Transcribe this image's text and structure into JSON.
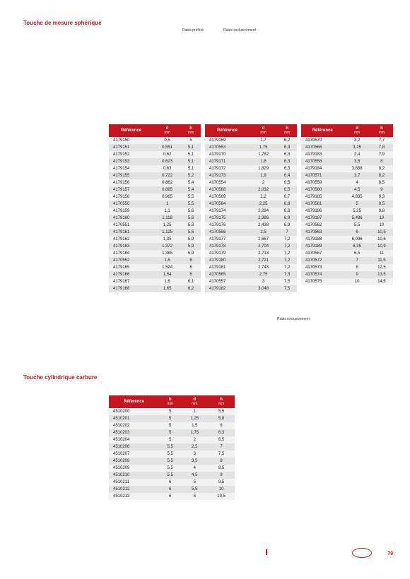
{
  "title1": "Touche de mesure sphérique",
  "title2": "Touche cylindrique carbure",
  "label_left": "Rubis préféré",
  "label_right": "Rubis exclusivement",
  "small_note": "Rubis\nexclusivement",
  "page_number": "79",
  "table1_headers": {
    "ref": "Référence",
    "d": "d",
    "d_unit": "mm",
    "h": "h",
    "h_unit": "mm"
  },
  "table2_headers": {
    "ref": "Référence",
    "b": "b",
    "b_unit": "mm",
    "d": "d",
    "d_unit": "mm",
    "h": "h",
    "h_unit": "mm"
  },
  "t1a": [
    [
      "4179150",
      "0,5",
      "5"
    ],
    [
      "4179151",
      "0,551",
      "5,1"
    ],
    [
      "4179152",
      "0,62",
      "5,1"
    ],
    [
      "4179153",
      "0,623",
      "5,1"
    ],
    [
      "4179154",
      "0,63",
      "5,1"
    ],
    [
      "4179155",
      "0,722",
      "5,2"
    ],
    [
      "4179156",
      "0,862",
      "5,4"
    ],
    [
      "4179157",
      "0,895",
      "5,4"
    ],
    [
      "4179158",
      "0,965",
      "5,5"
    ],
    [
      "4170550",
      "1",
      "5,5"
    ],
    [
      "4179159",
      "1,1",
      "5,6"
    ],
    [
      "4179160",
      "1,118",
      "5,6"
    ],
    [
      "4170551",
      "1,25",
      "5,8"
    ],
    [
      "4179161",
      "1,125",
      "5,6"
    ],
    [
      "4179162",
      "1,35",
      "5,9"
    ],
    [
      "4179163",
      "1,372",
      "5,9"
    ],
    [
      "4179164",
      "1,385",
      "5,9"
    ],
    [
      "4170552",
      "1,5",
      "6"
    ],
    [
      "4179165",
      "1,524",
      "6"
    ],
    [
      "4179166",
      "1,54",
      "6"
    ],
    [
      "4179167",
      "1,6",
      "6,1"
    ],
    [
      "4179168",
      "1,65",
      "6,2"
    ]
  ],
  "t1b": [
    [
      "4179169",
      "1,7",
      "6,2"
    ],
    [
      "4170553",
      "1,75",
      "6,3"
    ],
    [
      "4179170",
      "1,782",
      "6,3"
    ],
    [
      "4179171",
      "1,8",
      "6,3"
    ],
    [
      "4179172",
      "1,829",
      "6,3"
    ],
    [
      "4179173",
      "1,9",
      "6,4"
    ],
    [
      "4170554",
      "2",
      "6,5"
    ],
    [
      "4170568",
      "2,032",
      "6,5"
    ],
    [
      "4170569",
      "2,2",
      "6,7"
    ],
    [
      "4170564",
      "2,25",
      "6,8"
    ],
    [
      "4179174",
      "2,284",
      "6,8"
    ],
    [
      "4179175",
      "2,386",
      "6,9"
    ],
    [
      "4179176",
      "2,438",
      "6,9"
    ],
    [
      "4170556",
      "2,5",
      "7"
    ],
    [
      "4179177",
      "2,667",
      "7,2"
    ],
    [
      "4179178",
      "2,704",
      "7,2"
    ],
    [
      "4179179",
      "2,713",
      "7,2"
    ],
    [
      "4179180",
      "2,721",
      "7,2"
    ],
    [
      "4179181",
      "2,743",
      "7,2"
    ],
    [
      "4170565",
      "2,75",
      "7,3"
    ],
    [
      "4170557",
      "3",
      "7,5"
    ],
    [
      "4179182",
      "3,048",
      "7,5"
    ]
  ],
  "t1c": [
    [
      "4170570",
      "3,2",
      "7,7"
    ],
    [
      "4170566",
      "3,25",
      "7,8"
    ],
    [
      "4179183",
      "3,4",
      "7,9"
    ],
    [
      "4170558",
      "3,5",
      "8"
    ],
    [
      "4179184",
      "3,658",
      "8,2"
    ],
    [
      "4170571",
      "3,7",
      "8,2"
    ],
    [
      "4170559",
      "4",
      "8,5"
    ],
    [
      "4170560",
      "4,5",
      "9"
    ],
    [
      "4179185",
      "4,835",
      "9,3"
    ],
    [
      "4170561",
      "5",
      "9,5"
    ],
    [
      "4179186",
      "5,25",
      "9,8"
    ],
    [
      "4179187",
      "5,486",
      "10"
    ],
    [
      "4170562",
      "5,5",
      "10"
    ],
    [
      "4170563",
      "6",
      "10,5"
    ],
    [
      "4179188",
      "6,096",
      "10,6"
    ],
    [
      "4179189",
      "6,35",
      "10,9"
    ],
    [
      "4170567",
      "6,5",
      "11"
    ],
    [
      "4170572",
      "7",
      "11,5"
    ],
    [
      "4170573",
      "8",
      "12,5"
    ],
    [
      "4170574",
      "9",
      "13,5"
    ],
    [
      "4170575",
      "10",
      "14,5"
    ]
  ],
  "t2": [
    [
      "4510200",
      "5",
      "1",
      "5,5"
    ],
    [
      "4510201",
      "5",
      "1,25",
      "5,8"
    ],
    [
      "4510202",
      "5",
      "1,5",
      "6"
    ],
    [
      "4510203",
      "5",
      "1,75",
      "6,3"
    ],
    [
      "4510204",
      "5",
      "2",
      "6,5"
    ],
    [
      "4510206",
      "5,5",
      "2,5",
      "7"
    ],
    [
      "4510207",
      "5,5",
      "3",
      "7,5"
    ],
    [
      "4510208",
      "5,5",
      "3,5",
      "8"
    ],
    [
      "4510209",
      "5,5",
      "4",
      "8,5"
    ],
    [
      "4510210",
      "5,5",
      "4,5",
      "9"
    ],
    [
      "4510211",
      "6",
      "5",
      "9,5"
    ],
    [
      "4510212",
      "6",
      "5,5",
      "10"
    ],
    [
      "4510213",
      "6",
      "6",
      "10,5"
    ]
  ],
  "colors": {
    "brand": "#c4161c",
    "row_even": "#f2f2f2",
    "row_odd": "#e3e3e3",
    "bg": "#ffffff",
    "text": "#222222"
  }
}
